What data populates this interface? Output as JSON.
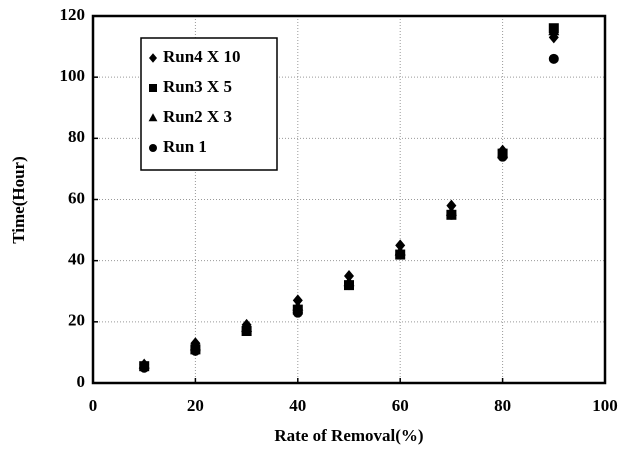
{
  "chart_data": {
    "type": "scatter",
    "x_label": "Rate of Removal(%)",
    "y_label": "Time(Hour)",
    "x": [
      10,
      20,
      30,
      40,
      50,
      60,
      70,
      80,
      90
    ],
    "series": [
      {
        "name": "Run4 X 10",
        "color": "#000000",
        "marker": "diamond",
        "values": [
          6,
          13,
          19,
          27,
          35,
          45,
          58,
          76,
          113
        ]
      },
      {
        "name": "Run3 X 5",
        "color": "#000000",
        "marker": "square",
        "values": [
          5.5,
          11,
          17,
          24,
          32,
          42,
          55,
          75,
          116
        ]
      },
      {
        "name": "Run2 X 3",
        "color": "#000000",
        "marker": "triangle",
        "values": [
          6,
          12,
          18,
          25,
          33,
          43,
          56,
          75,
          115
        ]
      },
      {
        "name": "Run 1",
        "color": "#000000",
        "marker": "circle",
        "values": [
          5,
          10.5,
          17,
          23,
          32,
          42,
          55,
          74,
          106
        ]
      }
    ],
    "xlim": [
      0,
      100
    ],
    "xticks": [
      0,
      20,
      40,
      60,
      80,
      100
    ],
    "ylim": [
      0,
      120
    ],
    "yticks": [
      0,
      20,
      40,
      60,
      80,
      100,
      120
    ],
    "grid": true,
    "legend": "upper left"
  }
}
